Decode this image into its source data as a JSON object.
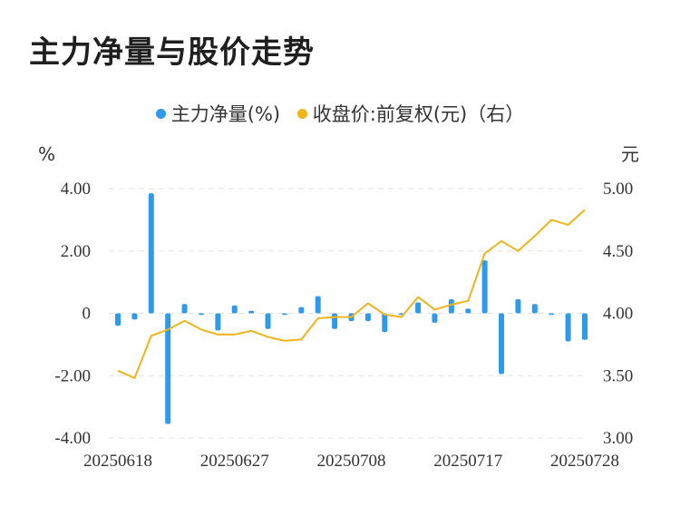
{
  "title": "主力净量与股价走势",
  "legend": {
    "series1": "主力净量(%)",
    "series2": "收盘价:前复权(元)（右）"
  },
  "colors": {
    "bar": "#2f9ae8",
    "line": "#f0b41c",
    "grid": "#e3e3e3"
  },
  "chart_data": {
    "type": "bar+line",
    "left_unit": "%",
    "right_unit": "元",
    "left_ticks": [
      "4.00",
      "2.00",
      "0",
      "-2.00",
      "-4.00"
    ],
    "right_ticks": [
      "5.00",
      "4.50",
      "4.00",
      "3.50",
      "3.00"
    ],
    "ylim_left": [
      -4,
      4
    ],
    "ylim_right": [
      3,
      5
    ],
    "x_tick_labels": [
      "20250618",
      "20250627",
      "20250708",
      "20250717",
      "20250728"
    ],
    "dates": [
      "20250618",
      "20250619",
      "20250620",
      "20250623",
      "20250624",
      "20250625",
      "20250626",
      "20250627",
      "20250630",
      "20250701",
      "20250702",
      "20250703",
      "20250704",
      "20250707",
      "20250708",
      "20250709",
      "20250710",
      "20250711",
      "20250714",
      "20250715",
      "20250716",
      "20250717",
      "20250718",
      "20250721",
      "20250722",
      "20250723",
      "20250724",
      "20250725",
      "20250728"
    ],
    "series": [
      {
        "name": "主力净量(%)",
        "axis": "left",
        "values": [
          -0.4,
          -0.2,
          3.85,
          -3.55,
          0.3,
          -0.05,
          -0.55,
          0.25,
          0.08,
          -0.5,
          -0.05,
          0.2,
          0.55,
          -0.5,
          -0.25,
          -0.25,
          -0.6,
          -0.05,
          0.35,
          -0.3,
          0.45,
          0.15,
          1.7,
          -1.95,
          0.45,
          0.3,
          -0.05,
          -0.9,
          -0.85
        ]
      },
      {
        "name": "收盘价:前复权(元)",
        "axis": "right",
        "values": [
          3.54,
          3.48,
          3.82,
          3.87,
          3.94,
          3.87,
          3.83,
          3.83,
          3.86,
          3.81,
          3.78,
          3.79,
          3.96,
          3.97,
          3.97,
          4.08,
          3.99,
          3.97,
          4.13,
          4.03,
          4.07,
          4.1,
          4.48,
          4.58,
          4.5,
          4.62,
          4.75,
          4.71,
          4.83
        ]
      }
    ]
  }
}
